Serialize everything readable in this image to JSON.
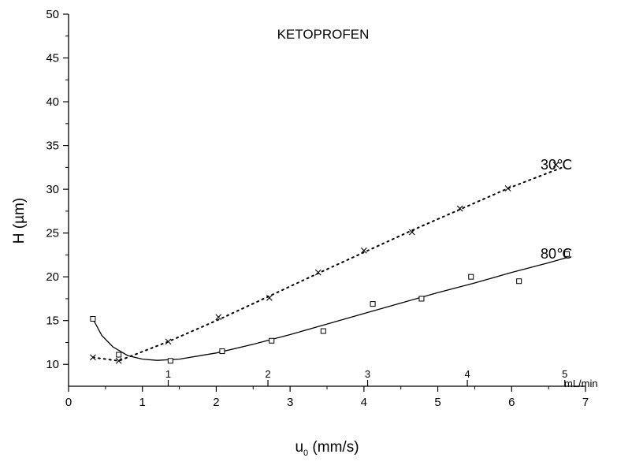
{
  "chart_data": {
    "type": "scatter",
    "title": "KETOPROFEN",
    "xlabel": {
      "main": "u",
      "sub": "0",
      "rest": " (mm/s)"
    },
    "ylabel": "H (µm)",
    "xlim": [
      0,
      7
    ],
    "ylim": [
      7.5,
      50
    ],
    "x_ticks": [
      "0",
      "1",
      "2",
      "3",
      "4",
      "5",
      "6",
      "7"
    ],
    "y_ticks": [
      "10",
      "15",
      "20",
      "25",
      "30",
      "35",
      "40",
      "45",
      "50"
    ],
    "flow_axis": {
      "unit": "mL/min",
      "ticks": [
        {
          "label": "1",
          "x": 1.35
        },
        {
          "label": "2",
          "x": 2.7
        },
        {
          "label": "3",
          "x": 4.05
        },
        {
          "label": "4",
          "x": 5.4
        },
        {
          "label": "5",
          "x": 6.72
        }
      ]
    },
    "series": [
      {
        "name": "30℃",
        "marker": "x",
        "line": "dotted",
        "x": [
          0.33,
          0.68,
          1.35,
          2.03,
          2.72,
          3.38,
          4.0,
          4.65,
          5.3,
          5.95,
          6.6
        ],
        "y": [
          10.8,
          10.4,
          12.6,
          15.4,
          17.6,
          20.5,
          23.0,
          25.1,
          27.8,
          30.1,
          32.8
        ],
        "fit": [
          [
            0.33,
            10.8
          ],
          [
            0.68,
            10.4
          ],
          [
            1.35,
            12.6
          ],
          [
            2.03,
            15.1
          ],
          [
            2.72,
            17.8
          ],
          [
            3.38,
            20.4
          ],
          [
            4.0,
            22.8
          ],
          [
            4.65,
            25.3
          ],
          [
            5.3,
            27.7
          ],
          [
            5.95,
            30.1
          ],
          [
            6.72,
            32.6
          ]
        ]
      },
      {
        "name": "80℃",
        "marker": "square",
        "line": "solid",
        "x": [
          0.33,
          0.68,
          1.38,
          2.08,
          2.75,
          3.45,
          4.12,
          4.78,
          5.45,
          6.1,
          6.75
        ],
        "y": [
          15.2,
          11.1,
          10.4,
          11.5,
          12.7,
          13.8,
          16.9,
          17.5,
          20.0,
          19.5,
          22.6
        ],
        "fit": [
          [
            0.33,
            15.2
          ],
          [
            0.45,
            13.3
          ],
          [
            0.6,
            12.0
          ],
          [
            0.8,
            11.0
          ],
          [
            1.0,
            10.6
          ],
          [
            1.2,
            10.45
          ],
          [
            1.5,
            10.6
          ],
          [
            2.0,
            11.3
          ],
          [
            2.5,
            12.3
          ],
          [
            3.0,
            13.4
          ],
          [
            3.5,
            14.6
          ],
          [
            4.0,
            15.8
          ],
          [
            4.5,
            17.0
          ],
          [
            5.0,
            18.2
          ],
          [
            5.5,
            19.3
          ],
          [
            6.0,
            20.5
          ],
          [
            6.5,
            21.6
          ],
          [
            6.75,
            22.2
          ]
        ]
      }
    ]
  }
}
